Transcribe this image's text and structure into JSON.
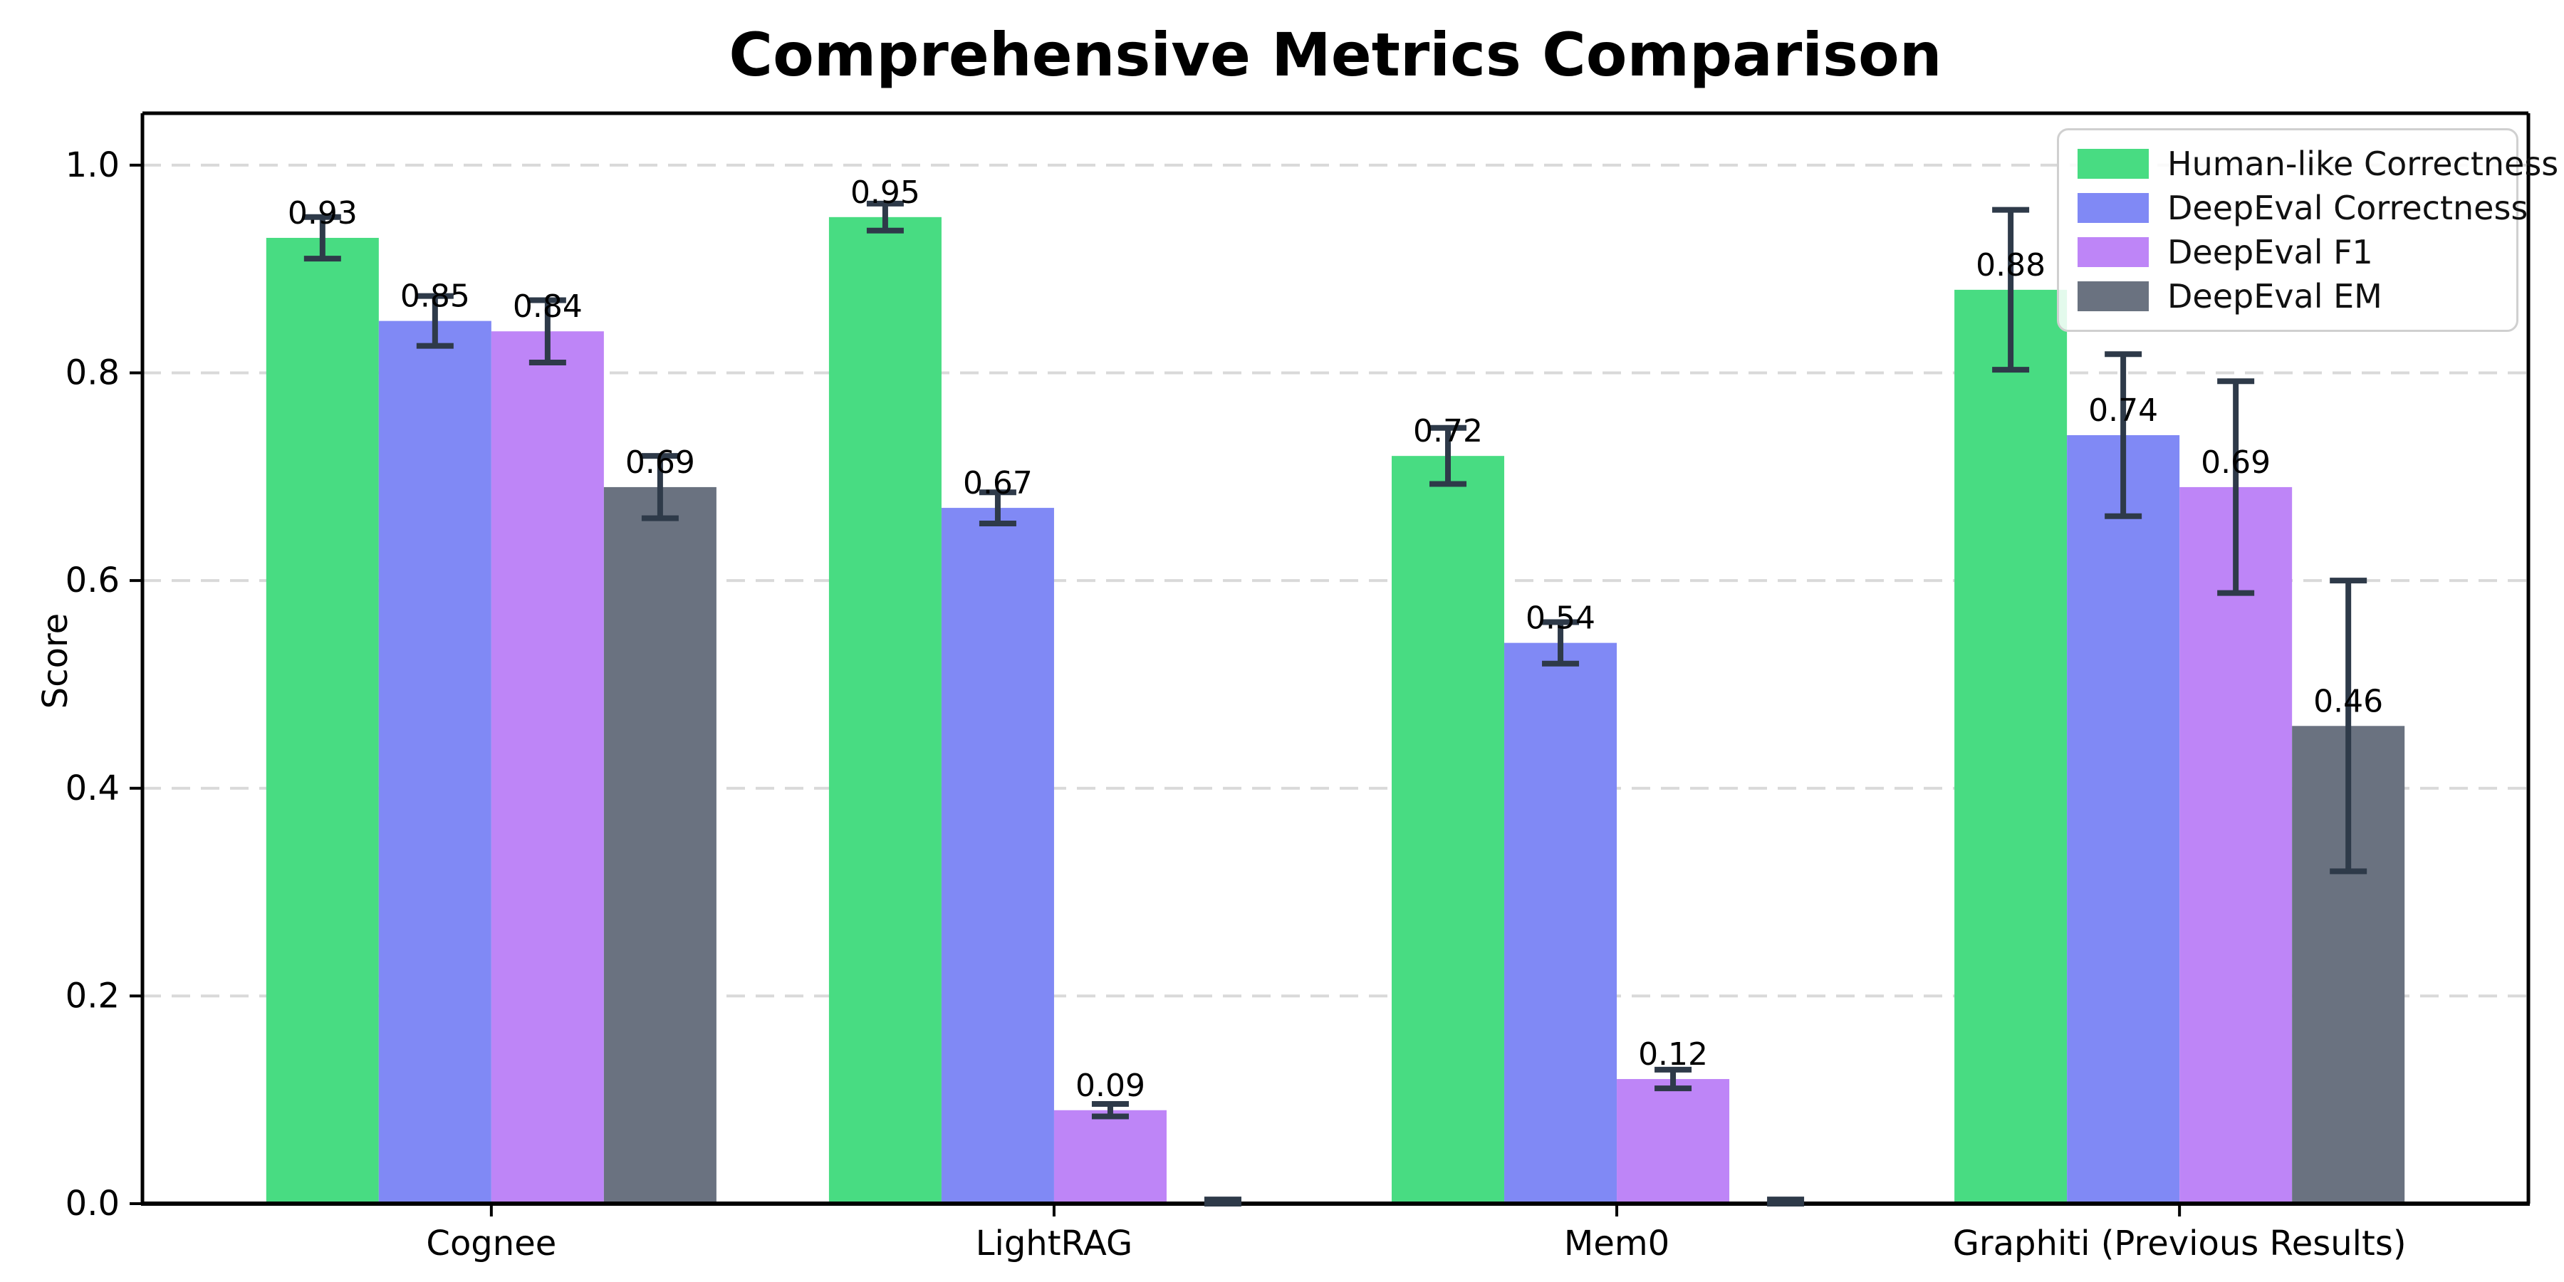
{
  "figure_title": "Comprehensive Metrics Comparison",
  "chart_data": {
    "type": "bar",
    "title": "Comprehensive Metrics Comparison",
    "xlabel": "",
    "ylabel": "Score",
    "categories": [
      "Cognee",
      "LightRAG",
      "Mem0",
      "Graphiti (Previous Results)"
    ],
    "series": [
      {
        "name": "Human-like Correctness",
        "color": "#48dc82",
        "values": [
          0.93,
          0.95,
          0.72,
          0.88
        ],
        "errors": [
          0.02,
          0.013,
          0.027,
          0.077
        ],
        "labels": [
          "0.93",
          "0.95",
          "0.72",
          "0.88"
        ]
      },
      {
        "name": "DeepEval Correctness",
        "color": "#8089f5",
        "values": [
          0.85,
          0.67,
          0.54,
          0.74
        ],
        "errors": [
          0.024,
          0.015,
          0.02,
          0.078
        ],
        "labels": [
          "0.85",
          "0.67",
          "0.54",
          "0.74"
        ]
      },
      {
        "name": "DeepEval F1",
        "color": "#be85f7",
        "values": [
          0.84,
          0.09,
          0.12,
          0.69
        ],
        "errors": [
          0.03,
          0.006,
          0.009,
          0.102
        ],
        "labels": [
          "0.84",
          "0.09",
          "0.12",
          "0.69"
        ]
      },
      {
        "name": "DeepEval EM",
        "color": "#6a7280",
        "values": [
          0.69,
          0.0,
          0.0,
          0.46
        ],
        "errors": [
          0.03,
          0.004,
          0.004,
          0.14
        ],
        "labels": [
          "0.69",
          "",
          "",
          "0.46"
        ]
      }
    ],
    "ylim": [
      0,
      1.05
    ],
    "yticks": [
      0.0,
      0.2,
      0.4,
      0.6,
      0.8,
      1.0
    ],
    "ytick_labels": [
      "0.0",
      "0.2",
      "0.4",
      "0.6",
      "0.8",
      "1.0"
    ],
    "grid": "horizontal-dashed",
    "legend_position": "upper-right",
    "colors": {
      "error_bar": "#2e3a49",
      "grid_line": "#d9d9d9",
      "axis": "#000000",
      "text": "#000000",
      "legend_border": "#d0d0d0"
    }
  }
}
